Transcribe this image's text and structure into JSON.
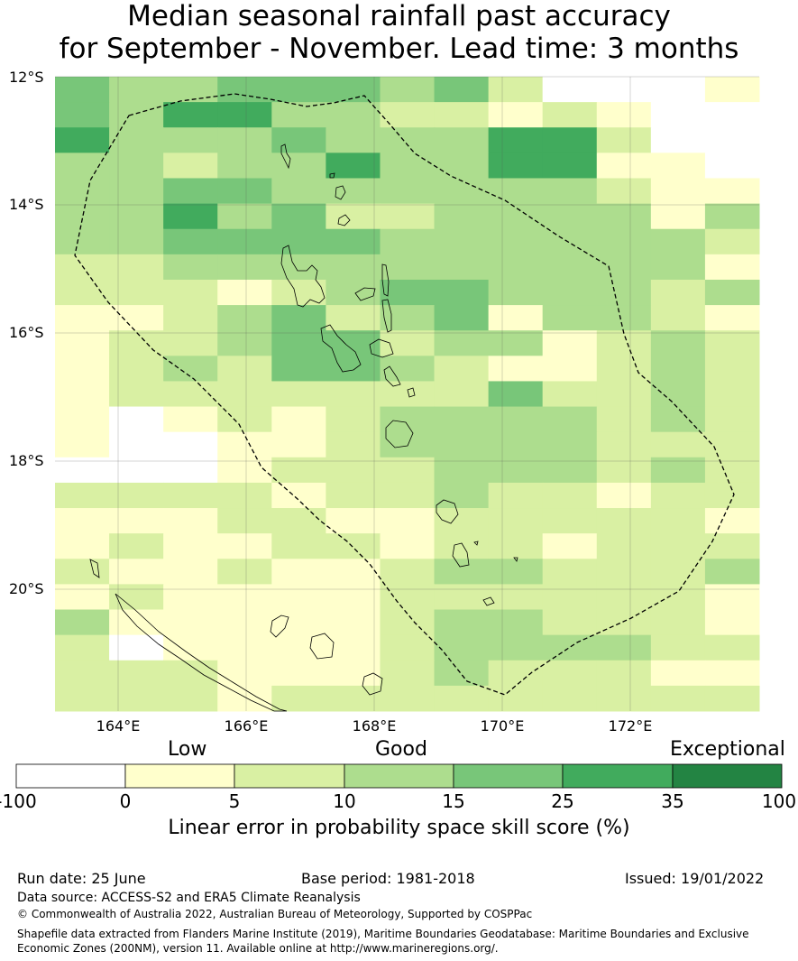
{
  "title": {
    "line1": "Median seasonal rainfall past accuracy",
    "line2": "for September - November. Lead time: 3 months"
  },
  "map": {
    "lat_labels": [
      "12°S",
      "14°S",
      "16°S",
      "18°S",
      "20°S"
    ],
    "lon_labels": [
      "164°E",
      "166°E",
      "168°E",
      "170°E",
      "172°E"
    ],
    "boundary_style": "dashed",
    "gridlines": true
  },
  "legend": {
    "categories": [
      "Low",
      "Good",
      "Exceptional"
    ],
    "ticks": [
      "-100",
      "0",
      "5",
      "10",
      "15",
      "25",
      "35",
      "100"
    ],
    "colors": [
      "#ffffff",
      "#ffffcc",
      "#d9f0a3",
      "#addd8e",
      "#78c679",
      "#41ab5d",
      "#238443"
    ],
    "label": "Linear error in probability space skill score (%)"
  },
  "footer": {
    "run_date": "Run date: 25 June",
    "base_period": "Base period: 1981-2018",
    "issued": "Issued: 19/01/2022",
    "data_source": "Data source: ACCESS-S2 and ERA5 Climate Reanalysis",
    "copyright": "© Commonwealth of Australia 2022, Australian Bureau of Meteorology, Supported by COSPPac",
    "shapefile_line1": "Shapefile data extracted from Flanders Marine Institute (2019), Maritime Boundaries Geodatabase: Maritime Boundaries and Exclusive",
    "shapefile_line2": "Economic Zones (200NM), version 11. Available online at http://www.marineregions.org/."
  },
  "grid_values": [
    "4334443420001",
    "4355332212100",
    "5333433355200",
    "3323353355110",
    "3344333333211",
    "3353422333313",
    "3344443333332",
    "2233333333331",
    "2221234433323",
    "1123423413321",
    "1223442331232",
    "1232443211232",
    "1222222242232",
    "1012123333232",
    "1001123333222",
    "0001222333232",
    "2222122322122",
    "1112211222221",
    "1211221221222",
    "2112112332223",
    "1211112222221",
    "3111112332221",
    "2011112333322",
    "2221112322211",
    "2221222222222"
  ]
}
